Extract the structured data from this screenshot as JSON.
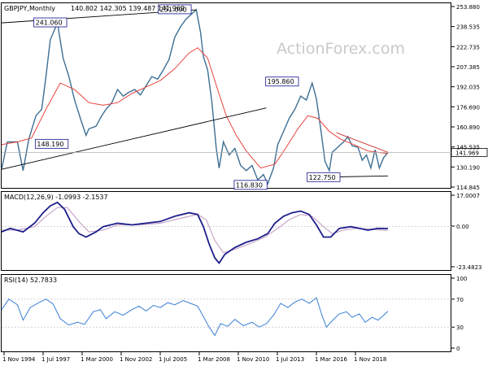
{
  "chart_data": {
    "type": "line",
    "symbol": "GBPJPY,Monthly",
    "ohlc_text": "140.802 142.305 139.487 141.969",
    "watermark": "ActionForex.com",
    "x_labels": [
      "1 Nov 1994",
      "1 Jul 1997",
      "1 Mar 2000",
      "1 Nov 2002",
      "1 Jul 2005",
      "1 Mar 2008",
      "1 Nov 2010",
      "1 Jul 2013",
      "1 Mar 2016",
      "1 Nov 2018"
    ],
    "price": {
      "y_range": [
        114.845,
        256.0
      ],
      "y_ticks": [
        "253.880",
        "238.535",
        "222.735",
        "207.385",
        "192.035",
        "176.690",
        "160.890",
        "145.535",
        "130.190",
        "114.845"
      ],
      "current_label": "141.969",
      "current_value": 141.969,
      "annotations": [
        {
          "text": "241.060",
          "t": 1997.3,
          "v": 241.06
        },
        {
          "text": "251.090",
          "t": 2006.0,
          "v": 251.09
        },
        {
          "text": "148.190",
          "t": 1997.4,
          "v": 148.19
        },
        {
          "text": "195.860",
          "t": 2013.5,
          "v": 195.86
        },
        {
          "text": "116.830",
          "t": 2011.3,
          "v": 116.83
        },
        {
          "text": "122.750",
          "t": 2016.4,
          "v": 122.75
        }
      ],
      "series": [
        {
          "t": 1993.9,
          "v": 129
        },
        {
          "t": 1994.3,
          "v": 150
        },
        {
          "t": 1995.0,
          "v": 150
        },
        {
          "t": 1995.4,
          "v": 128
        },
        {
          "t": 1995.8,
          "v": 152
        },
        {
          "t": 1996.3,
          "v": 170
        },
        {
          "t": 1996.7,
          "v": 175
        },
        {
          "t": 1997.0,
          "v": 200
        },
        {
          "t": 1997.3,
          "v": 228
        },
        {
          "t": 1997.8,
          "v": 241
        },
        {
          "t": 1998.2,
          "v": 214
        },
        {
          "t": 1998.6,
          "v": 200
        },
        {
          "t": 1999.0,
          "v": 182
        },
        {
          "t": 1999.4,
          "v": 168
        },
        {
          "t": 1999.8,
          "v": 155
        },
        {
          "t": 2000.0,
          "v": 160
        },
        {
          "t": 2000.5,
          "v": 162
        },
        {
          "t": 2000.9,
          "v": 170
        },
        {
          "t": 2001.2,
          "v": 175
        },
        {
          "t": 2001.6,
          "v": 180
        },
        {
          "t": 2002.0,
          "v": 190
        },
        {
          "t": 2002.4,
          "v": 185
        },
        {
          "t": 2002.8,
          "v": 188
        },
        {
          "t": 2003.2,
          "v": 190
        },
        {
          "t": 2003.6,
          "v": 186
        },
        {
          "t": 2004.0,
          "v": 193
        },
        {
          "t": 2004.4,
          "v": 200
        },
        {
          "t": 2004.8,
          "v": 198
        },
        {
          "t": 2005.2,
          "v": 205
        },
        {
          "t": 2005.6,
          "v": 213
        },
        {
          "t": 2006.0,
          "v": 230
        },
        {
          "t": 2006.4,
          "v": 238
        },
        {
          "t": 2006.8,
          "v": 244
        },
        {
          "t": 2007.2,
          "v": 248
        },
        {
          "t": 2007.5,
          "v": 251
        },
        {
          "t": 2007.8,
          "v": 234
        },
        {
          "t": 2008.0,
          "v": 215
        },
        {
          "t": 2008.3,
          "v": 205
        },
        {
          "t": 2008.6,
          "v": 180
        },
        {
          "t": 2008.9,
          "v": 145
        },
        {
          "t": 2009.1,
          "v": 130
        },
        {
          "t": 2009.4,
          "v": 150
        },
        {
          "t": 2009.8,
          "v": 140
        },
        {
          "t": 2010.2,
          "v": 145
        },
        {
          "t": 2010.6,
          "v": 132
        },
        {
          "t": 2011.0,
          "v": 128
        },
        {
          "t": 2011.4,
          "v": 132
        },
        {
          "t": 2011.8,
          "v": 121
        },
        {
          "t": 2012.2,
          "v": 125
        },
        {
          "t": 2012.5,
          "v": 118
        },
        {
          "t": 2012.9,
          "v": 130
        },
        {
          "t": 2013.2,
          "v": 148
        },
        {
          "t": 2013.6,
          "v": 158
        },
        {
          "t": 2014.0,
          "v": 168
        },
        {
          "t": 2014.4,
          "v": 175
        },
        {
          "t": 2014.8,
          "v": 185
        },
        {
          "t": 2015.2,
          "v": 182
        },
        {
          "t": 2015.6,
          "v": 195
        },
        {
          "t": 2015.9,
          "v": 183
        },
        {
          "t": 2016.2,
          "v": 160
        },
        {
          "t": 2016.5,
          "v": 135
        },
        {
          "t": 2016.8,
          "v": 128
        },
        {
          "t": 2017.0,
          "v": 142
        },
        {
          "t": 2017.4,
          "v": 146
        },
        {
          "t": 2017.8,
          "v": 150
        },
        {
          "t": 2018.1,
          "v": 154
        },
        {
          "t": 2018.4,
          "v": 147
        },
        {
          "t": 2018.8,
          "v": 146
        },
        {
          "t": 2019.1,
          "v": 136
        },
        {
          "t": 2019.4,
          "v": 140
        },
        {
          "t": 2019.7,
          "v": 130
        },
        {
          "t": 2020.0,
          "v": 144
        },
        {
          "t": 2020.3,
          "v": 130
        },
        {
          "t": 2020.6,
          "v": 138
        },
        {
          "t": 2020.9,
          "v": 142
        }
      ],
      "ma": [
        {
          "t": 1993.9,
          "v": 148
        },
        {
          "t": 1995.0,
          "v": 150
        },
        {
          "t": 1996.0,
          "v": 153
        },
        {
          "t": 1997.0,
          "v": 175
        },
        {
          "t": 1998.0,
          "v": 195
        },
        {
          "t": 1999.0,
          "v": 190
        },
        {
          "t": 2000.0,
          "v": 180
        },
        {
          "t": 2001.0,
          "v": 178
        },
        {
          "t": 2002.0,
          "v": 180
        },
        {
          "t": 2003.0,
          "v": 187
        },
        {
          "t": 2004.0,
          "v": 192
        },
        {
          "t": 2005.0,
          "v": 197
        },
        {
          "t": 2006.0,
          "v": 206
        },
        {
          "t": 2007.0,
          "v": 218
        },
        {
          "t": 2007.6,
          "v": 222
        },
        {
          "t": 2008.3,
          "v": 214
        },
        {
          "t": 2009.0,
          "v": 190
        },
        {
          "t": 2009.6,
          "v": 170
        },
        {
          "t": 2010.3,
          "v": 155
        },
        {
          "t": 2011.0,
          "v": 143
        },
        {
          "t": 2012.0,
          "v": 130
        },
        {
          "t": 2013.0,
          "v": 133
        },
        {
          "t": 2013.8,
          "v": 146
        },
        {
          "t": 2014.6,
          "v": 160
        },
        {
          "t": 2015.3,
          "v": 170
        },
        {
          "t": 2016.0,
          "v": 168
        },
        {
          "t": 2016.8,
          "v": 158
        },
        {
          "t": 2017.6,
          "v": 152
        },
        {
          "t": 2018.5,
          "v": 148
        },
        {
          "t": 2019.5,
          "v": 143
        },
        {
          "t": 2020.9,
          "v": 141
        }
      ],
      "trendlines": [
        {
          "t1": 1993.9,
          "v1": 241,
          "t2": 2007.5,
          "v2": 251
        },
        {
          "t1": 1993.9,
          "v1": 129,
          "t2": 2012.4,
          "v2": 176
        },
        {
          "t1": 2017.3,
          "v1": 157,
          "t2": 2020.9,
          "v2": 142
        },
        {
          "t1": 2016.2,
          "v1": 123,
          "t2": 2020.9,
          "v2": 124
        }
      ]
    },
    "macd": {
      "label": "MACD(12,26,9) -1.0993 -2.1537",
      "y_range": [
        -25,
        20
      ],
      "y_ticks": [
        "17.0007",
        "0.00",
        "-23.4823"
      ],
      "macd_series": [
        {
          "t": 1993.9,
          "v": -3
        },
        {
          "t": 1994.5,
          "v": -1
        },
        {
          "t": 1995.4,
          "v": -3
        },
        {
          "t": 1996.2,
          "v": 2
        },
        {
          "t": 1996.8,
          "v": 8
        },
        {
          "t": 1997.3,
          "v": 12
        },
        {
          "t": 1997.8,
          "v": 14
        },
        {
          "t": 1998.3,
          "v": 10
        },
        {
          "t": 1998.9,
          "v": 0
        },
        {
          "t": 1999.3,
          "v": -4
        },
        {
          "t": 1999.8,
          "v": -6
        },
        {
          "t": 2000.5,
          "v": -3
        },
        {
          "t": 2001.0,
          "v": 0
        },
        {
          "t": 2002.0,
          "v": 2
        },
        {
          "t": 2003.0,
          "v": 1
        },
        {
          "t": 2004.0,
          "v": 2
        },
        {
          "t": 2005.0,
          "v": 3
        },
        {
          "t": 2006.0,
          "v": 6
        },
        {
          "t": 2007.0,
          "v": 8
        },
        {
          "t": 2007.6,
          "v": 7
        },
        {
          "t": 2008.0,
          "v": 0
        },
        {
          "t": 2008.4,
          "v": -10
        },
        {
          "t": 2008.8,
          "v": -18
        },
        {
          "t": 2009.1,
          "v": -21
        },
        {
          "t": 2009.5,
          "v": -16
        },
        {
          "t": 2010.2,
          "v": -12
        },
        {
          "t": 2011.0,
          "v": -9
        },
        {
          "t": 2011.8,
          "v": -7
        },
        {
          "t": 2012.5,
          "v": -4
        },
        {
          "t": 2013.0,
          "v": 2
        },
        {
          "t": 2013.6,
          "v": 6
        },
        {
          "t": 2014.2,
          "v": 8
        },
        {
          "t": 2014.8,
          "v": 9
        },
        {
          "t": 2015.4,
          "v": 7
        },
        {
          "t": 2015.9,
          "v": 1
        },
        {
          "t": 2016.4,
          "v": -6
        },
        {
          "t": 2016.9,
          "v": -6
        },
        {
          "t": 2017.5,
          "v": -1
        },
        {
          "t": 2018.3,
          "v": 0
        },
        {
          "t": 2018.9,
          "v": -1
        },
        {
          "t": 2019.5,
          "v": -2
        },
        {
          "t": 2020.2,
          "v": -1
        },
        {
          "t": 2020.9,
          "v": -1.1
        }
      ],
      "signal_series": [
        {
          "t": 1993.9,
          "v": -2
        },
        {
          "t": 1995.0,
          "v": -2
        },
        {
          "t": 1996.2,
          "v": 0
        },
        {
          "t": 1997.0,
          "v": 6
        },
        {
          "t": 1997.8,
          "v": 11
        },
        {
          "t": 1998.5,
          "v": 11
        },
        {
          "t": 1999.3,
          "v": 3
        },
        {
          "t": 2000.0,
          "v": -3
        },
        {
          "t": 2001.0,
          "v": -2
        },
        {
          "t": 2002.0,
          "v": 1
        },
        {
          "t": 2003.5,
          "v": 1
        },
        {
          "t": 2005.0,
          "v": 2
        },
        {
          "t": 2006.5,
          "v": 5
        },
        {
          "t": 2007.6,
          "v": 7
        },
        {
          "t": 2008.2,
          "v": 4
        },
        {
          "t": 2008.8,
          "v": -8
        },
        {
          "t": 2009.4,
          "v": -15
        },
        {
          "t": 2010.2,
          "v": -13
        },
        {
          "t": 2011.2,
          "v": -10
        },
        {
          "t": 2012.3,
          "v": -6
        },
        {
          "t": 2013.2,
          "v": -1
        },
        {
          "t": 2014.0,
          "v": 4
        },
        {
          "t": 2014.8,
          "v": 7
        },
        {
          "t": 2015.6,
          "v": 6
        },
        {
          "t": 2016.4,
          "v": 0
        },
        {
          "t": 2017.0,
          "v": -4
        },
        {
          "t": 2017.8,
          "v": -2
        },
        {
          "t": 2018.6,
          "v": -1
        },
        {
          "t": 2019.6,
          "v": -1.5
        },
        {
          "t": 2020.9,
          "v": -2.15
        }
      ]
    },
    "rsi": {
      "label": "RSI(14) 52.7833",
      "y_range": [
        0,
        100
      ],
      "y_ticks": [
        "100",
        "70",
        "30",
        "0"
      ],
      "series": [
        {
          "t": 1993.9,
          "v": 55
        },
        {
          "t": 1994.4,
          "v": 70
        },
        {
          "t": 1995.0,
          "v": 62
        },
        {
          "t": 1995.4,
          "v": 40
        },
        {
          "t": 1995.9,
          "v": 58
        },
        {
          "t": 1996.5,
          "v": 65
        },
        {
          "t": 1997.0,
          "v": 70
        },
        {
          "t": 1997.5,
          "v": 63
        },
        {
          "t": 1998.0,
          "v": 42
        },
        {
          "t": 1998.6,
          "v": 33
        },
        {
          "t": 1999.2,
          "v": 37
        },
        {
          "t": 1999.7,
          "v": 34
        },
        {
          "t": 2000.3,
          "v": 52
        },
        {
          "t": 2000.8,
          "v": 55
        },
        {
          "t": 2001.2,
          "v": 42
        },
        {
          "t": 2001.8,
          "v": 52
        },
        {
          "t": 2002.4,
          "v": 47
        },
        {
          "t": 2003.0,
          "v": 55
        },
        {
          "t": 2003.5,
          "v": 60
        },
        {
          "t": 2004.0,
          "v": 53
        },
        {
          "t": 2004.5,
          "v": 61
        },
        {
          "t": 2005.0,
          "v": 58
        },
        {
          "t": 2005.5,
          "v": 65
        },
        {
          "t": 2006.0,
          "v": 62
        },
        {
          "t": 2006.6,
          "v": 68
        },
        {
          "t": 2007.1,
          "v": 64
        },
        {
          "t": 2007.6,
          "v": 60
        },
        {
          "t": 2008.0,
          "v": 45
        },
        {
          "t": 2008.4,
          "v": 30
        },
        {
          "t": 2008.8,
          "v": 18
        },
        {
          "t": 2009.2,
          "v": 35
        },
        {
          "t": 2009.7,
          "v": 31
        },
        {
          "t": 2010.2,
          "v": 41
        },
        {
          "t": 2010.8,
          "v": 32
        },
        {
          "t": 2011.4,
          "v": 37
        },
        {
          "t": 2011.9,
          "v": 30
        },
        {
          "t": 2012.4,
          "v": 35
        },
        {
          "t": 2012.9,
          "v": 47
        },
        {
          "t": 2013.4,
          "v": 64
        },
        {
          "t": 2013.9,
          "v": 58
        },
        {
          "t": 2014.4,
          "v": 66
        },
        {
          "t": 2014.9,
          "v": 70
        },
        {
          "t": 2015.4,
          "v": 64
        },
        {
          "t": 2015.9,
          "v": 72
        },
        {
          "t": 2016.3,
          "v": 46
        },
        {
          "t": 2016.6,
          "v": 30
        },
        {
          "t": 2017.0,
          "v": 39
        },
        {
          "t": 2017.5,
          "v": 49
        },
        {
          "t": 2018.0,
          "v": 52
        },
        {
          "t": 2018.4,
          "v": 44
        },
        {
          "t": 2018.9,
          "v": 49
        },
        {
          "t": 2019.3,
          "v": 37
        },
        {
          "t": 2019.8,
          "v": 44
        },
        {
          "t": 2020.2,
          "v": 40
        },
        {
          "t": 2020.6,
          "v": 47
        },
        {
          "t": 2020.9,
          "v": 52.8
        }
      ]
    },
    "colors": {
      "price_line": "#3d6f94",
      "ma_line": "#e8433c",
      "trendline": "#000000",
      "trend_red": "#c9302c",
      "macd_line": "#1e1e8c",
      "signal_line": "#c8a6c8",
      "rsi_line": "#3a7fd6",
      "label_box": "#2b2b9a",
      "grid": "#e5e5e5"
    }
  }
}
